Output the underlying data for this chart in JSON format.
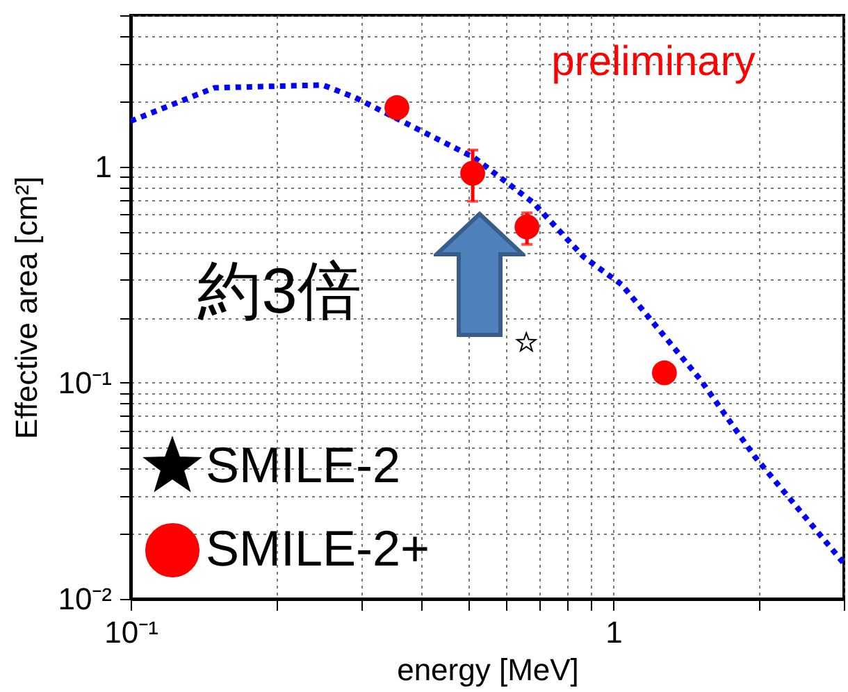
{
  "chart_data": {
    "type": "scatter",
    "xlabel": "energy [MeV]",
    "ylabel": "Effective area [cm²]",
    "annotations": [
      "preliminary",
      "約3倍"
    ],
    "log": "xy",
    "grid": true,
    "legend": "bottom left",
    "xlim": [
      0.1,
      3
    ],
    "ylim": [
      0.01,
      5
    ],
    "xticks": [
      {
        "value": 0.1,
        "label": "10⁻¹"
      },
      {
        "value": 0.2,
        "label": null
      },
      {
        "value": 0.3,
        "label": null
      },
      {
        "value": 0.4,
        "label": null
      },
      {
        "value": 0.5,
        "label": null
      },
      {
        "value": 0.6,
        "label": null
      },
      {
        "value": 0.7,
        "label": null
      },
      {
        "value": 0.8,
        "label": null
      },
      {
        "value": 0.9,
        "label": null
      },
      {
        "value": 1,
        "label": "1"
      },
      {
        "value": 2,
        "label": null
      },
      {
        "value": 3,
        "label": null
      }
    ],
    "yticks": [
      {
        "value": 0.01,
        "label": "10⁻²"
      },
      {
        "value": 0.02,
        "label": null
      },
      {
        "value": 0.03,
        "label": null
      },
      {
        "value": 0.04,
        "label": null
      },
      {
        "value": 0.05,
        "label": null
      },
      {
        "value": 0.06,
        "label": null
      },
      {
        "value": 0.07,
        "label": null
      },
      {
        "value": 0.08,
        "label": null
      },
      {
        "value": 0.09,
        "label": null
      },
      {
        "value": 0.1,
        "label": "10⁻¹"
      },
      {
        "value": 0.2,
        "label": null
      },
      {
        "value": 0.3,
        "label": null
      },
      {
        "value": 0.4,
        "label": null
      },
      {
        "value": 0.5,
        "label": null
      },
      {
        "value": 0.6,
        "label": null
      },
      {
        "value": 0.7,
        "label": null
      },
      {
        "value": 0.8,
        "label": null
      },
      {
        "value": 0.9,
        "label": null
      },
      {
        "value": 1,
        "label": "1"
      },
      {
        "value": 2,
        "label": null
      },
      {
        "value": 3,
        "label": null
      },
      {
        "value": 4,
        "label": null
      },
      {
        "value": 5,
        "label": null
      }
    ],
    "series": [
      {
        "name": "SMILE-2",
        "marker": "star",
        "color": "#000000",
        "x": [
          0.66
        ],
        "values": [
          0.153
        ]
      },
      {
        "name": "SMILE-2+",
        "marker": "circle",
        "color": "#ff0000",
        "x": [
          0.356,
          0.511,
          0.662,
          1.275
        ],
        "values": [
          1.87,
          0.93,
          0.525,
          0.111
        ],
        "errors": [
          null,
          [
            0.69,
            1.19
          ],
          [
            0.436,
            0.61
          ],
          null
        ]
      },
      {
        "type": "line",
        "line_style": "dotted",
        "marker": "none",
        "color": "#0000ff",
        "x": [
          0.1,
          0.149,
          0.25,
          0.292,
          0.514,
          0.682,
          0.867,
          1.04,
          1.51,
          1.96,
          3.0
        ],
        "values": [
          1.62,
          2.31,
          2.38,
          2.08,
          1.1,
          0.68,
          0.382,
          0.284,
          0.104,
          0.0456,
          0.0146
        ]
      }
    ]
  }
}
